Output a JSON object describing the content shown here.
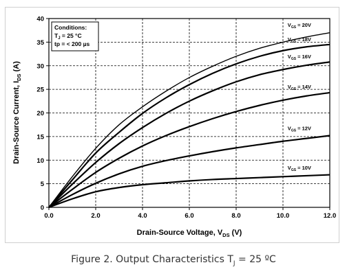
{
  "caption": {
    "prefix": "Figure 2. Output Characteristics T",
    "subscript": "J",
    "suffix": " = 25 ºC"
  },
  "conditions": {
    "title": "Conditions:",
    "line1_main": "T",
    "line1_sub": "J",
    "line1_rest": " = 25 °C",
    "line2": "tp = < 200 µs"
  },
  "chart_data": {
    "type": "line",
    "title": "",
    "xlabel_main": "Drain-Source Voltage, V",
    "xlabel_sub": "DS",
    "xlabel_unit": " (V)",
    "ylabel_main": "Drain-Source Current, I",
    "ylabel_sub": "DS",
    "ylabel_unit": " (A)",
    "xlim": [
      0,
      12
    ],
    "ylim": [
      0,
      40
    ],
    "xticks": [
      0,
      2,
      4,
      6,
      8,
      10,
      12
    ],
    "xtick_labels": [
      "0.0",
      "2.0",
      "4.0",
      "6.0",
      "8.0",
      "10.0",
      "12.0"
    ],
    "yticks": [
      0,
      5,
      10,
      15,
      20,
      25,
      30,
      35,
      40
    ],
    "ytick_labels": [
      "0",
      "5",
      "10",
      "15",
      "20",
      "25",
      "30",
      "35",
      "40"
    ],
    "grid": "dashed",
    "x": [
      0,
      1,
      2,
      3,
      4,
      5,
      6,
      7,
      8,
      9,
      10,
      11,
      12
    ],
    "series": [
      {
        "label_main": "V",
        "label_sub": "GS",
        "label_rest": " = 20V",
        "label_x": 10.2,
        "label_y": 37.8,
        "values": [
          0,
          6.5,
          12.5,
          17.5,
          21.3,
          24.6,
          27.5,
          29.9,
          32.0,
          33.7,
          35.0,
          36.1,
          37.0
        ]
      },
      {
        "label_main": "V",
        "label_sub": "GS",
        "label_rest": " = 18V",
        "label_x": 10.2,
        "label_y": 34.8,
        "values": [
          0,
          5.8,
          11.5,
          15.9,
          19.9,
          23.2,
          26.0,
          28.4,
          30.4,
          32.0,
          33.2,
          34.0,
          34.5
        ]
      },
      {
        "label_main": "V",
        "label_sub": "GS",
        "label_rest": " = 16V",
        "label_x": 10.2,
        "label_y": 31.1,
        "values": [
          0,
          4.9,
          9.5,
          13.5,
          16.9,
          19.9,
          22.5,
          24.7,
          26.6,
          28.1,
          29.2,
          30.1,
          30.8
        ]
      },
      {
        "label_main": "V",
        "label_sub": "GS",
        "label_rest": " = 14V",
        "label_x": 10.2,
        "label_y": 24.7,
        "values": [
          0,
          3.8,
          7.4,
          10.4,
          13.0,
          15.2,
          17.1,
          18.8,
          20.3,
          21.6,
          22.7,
          23.6,
          24.3
        ]
      },
      {
        "label_main": "V",
        "label_sub": "GS",
        "label_rest": " = 12V",
        "label_x": 10.2,
        "label_y": 15.9,
        "values": [
          0,
          2.7,
          5.1,
          7.1,
          8.7,
          9.9,
          10.9,
          11.8,
          12.6,
          13.3,
          14.0,
          14.6,
          15.2
        ]
      },
      {
        "label_main": "V",
        "label_sub": "GS",
        "label_rest": " = 10V",
        "label_x": 10.2,
        "label_y": 7.6,
        "values": [
          0,
          1.8,
          3.3,
          4.2,
          4.8,
          5.2,
          5.6,
          5.9,
          6.1,
          6.3,
          6.5,
          6.7,
          6.9
        ]
      }
    ]
  }
}
